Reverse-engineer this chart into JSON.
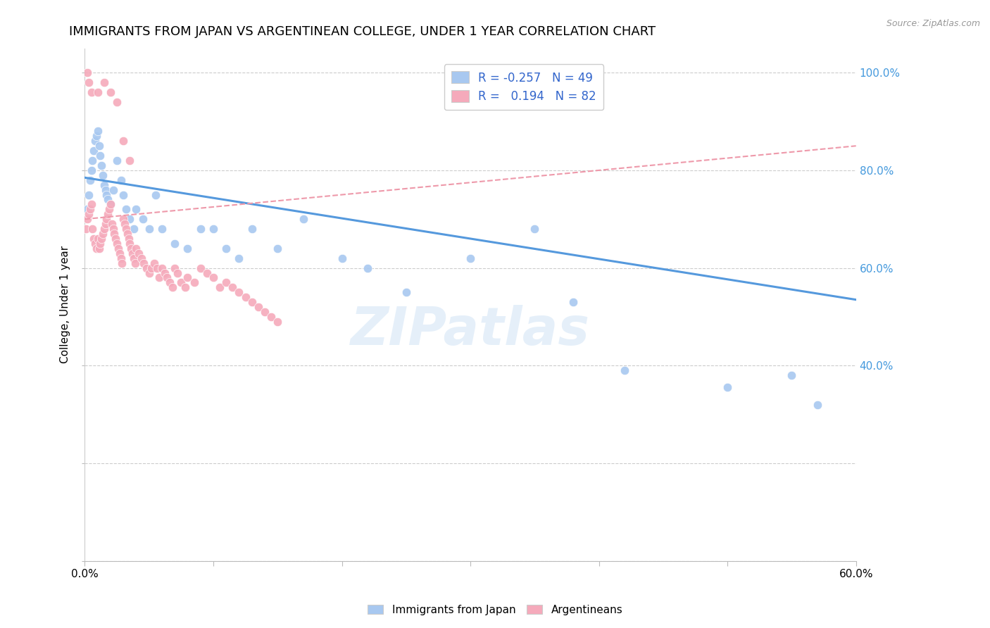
{
  "title": "IMMIGRANTS FROM JAPAN VS ARGENTINEAN COLLEGE, UNDER 1 YEAR CORRELATION CHART",
  "source": "Source: ZipAtlas.com",
  "ylabel": "College, Under 1 year",
  "x_min": 0.0,
  "x_max": 0.6,
  "y_min": 0.0,
  "y_max": 1.05,
  "legend_R_blue": "-0.257",
  "legend_N_blue": "49",
  "legend_R_pink": "0.194",
  "legend_N_pink": "82",
  "blue_color": "#A8C8F0",
  "pink_color": "#F5AABB",
  "blue_line_color": "#5599DD",
  "pink_line_color": "#EE99AA",
  "watermark": "ZIPatlas",
  "blue_scatter_x": [
    0.002,
    0.003,
    0.004,
    0.005,
    0.006,
    0.007,
    0.008,
    0.009,
    0.01,
    0.011,
    0.012,
    0.013,
    0.014,
    0.015,
    0.016,
    0.017,
    0.018,
    0.02,
    0.022,
    0.025,
    0.028,
    0.03,
    0.032,
    0.035,
    0.038,
    0.04,
    0.045,
    0.05,
    0.055,
    0.06,
    0.07,
    0.08,
    0.09,
    0.1,
    0.11,
    0.12,
    0.13,
    0.15,
    0.17,
    0.2,
    0.22,
    0.25,
    0.3,
    0.35,
    0.38,
    0.42,
    0.5,
    0.55,
    0.57
  ],
  "blue_scatter_y": [
    0.72,
    0.75,
    0.78,
    0.8,
    0.82,
    0.84,
    0.86,
    0.87,
    0.88,
    0.85,
    0.83,
    0.81,
    0.79,
    0.77,
    0.76,
    0.75,
    0.74,
    0.73,
    0.76,
    0.82,
    0.78,
    0.75,
    0.72,
    0.7,
    0.68,
    0.72,
    0.7,
    0.68,
    0.75,
    0.68,
    0.65,
    0.64,
    0.68,
    0.68,
    0.64,
    0.62,
    0.68,
    0.64,
    0.7,
    0.62,
    0.6,
    0.55,
    0.62,
    0.68,
    0.53,
    0.39,
    0.355,
    0.38,
    0.32
  ],
  "pink_scatter_x": [
    0.001,
    0.002,
    0.003,
    0.004,
    0.005,
    0.006,
    0.007,
    0.008,
    0.009,
    0.01,
    0.011,
    0.012,
    0.013,
    0.014,
    0.015,
    0.016,
    0.017,
    0.018,
    0.019,
    0.02,
    0.021,
    0.022,
    0.023,
    0.024,
    0.025,
    0.026,
    0.027,
    0.028,
    0.029,
    0.03,
    0.031,
    0.032,
    0.033,
    0.034,
    0.035,
    0.036,
    0.037,
    0.038,
    0.039,
    0.04,
    0.042,
    0.044,
    0.046,
    0.048,
    0.05,
    0.052,
    0.054,
    0.056,
    0.058,
    0.06,
    0.062,
    0.064,
    0.066,
    0.068,
    0.07,
    0.072,
    0.075,
    0.078,
    0.08,
    0.085,
    0.09,
    0.095,
    0.1,
    0.105,
    0.11,
    0.115,
    0.12,
    0.125,
    0.13,
    0.135,
    0.14,
    0.145,
    0.15,
    0.005,
    0.01,
    0.015,
    0.02,
    0.025,
    0.03,
    0.035,
    0.002,
    0.003
  ],
  "pink_scatter_y": [
    0.68,
    0.7,
    0.71,
    0.72,
    0.73,
    0.68,
    0.66,
    0.65,
    0.64,
    0.66,
    0.64,
    0.65,
    0.66,
    0.67,
    0.68,
    0.69,
    0.7,
    0.71,
    0.72,
    0.73,
    0.69,
    0.68,
    0.67,
    0.66,
    0.65,
    0.64,
    0.63,
    0.62,
    0.61,
    0.7,
    0.69,
    0.68,
    0.67,
    0.66,
    0.65,
    0.64,
    0.63,
    0.62,
    0.61,
    0.64,
    0.63,
    0.62,
    0.61,
    0.6,
    0.59,
    0.6,
    0.61,
    0.6,
    0.58,
    0.6,
    0.59,
    0.58,
    0.57,
    0.56,
    0.6,
    0.59,
    0.57,
    0.56,
    0.58,
    0.57,
    0.6,
    0.59,
    0.58,
    0.56,
    0.57,
    0.56,
    0.55,
    0.54,
    0.53,
    0.52,
    0.51,
    0.5,
    0.49,
    0.96,
    0.96,
    0.98,
    0.96,
    0.94,
    0.86,
    0.82,
    1.0,
    0.98
  ],
  "blue_line_x": [
    0.0,
    0.6
  ],
  "blue_line_y": [
    0.785,
    0.535
  ],
  "pink_line_x": [
    0.0,
    0.6
  ],
  "pink_line_y": [
    0.7,
    0.85
  ],
  "background_color": "#FFFFFF",
  "grid_color": "#DDDDDD"
}
